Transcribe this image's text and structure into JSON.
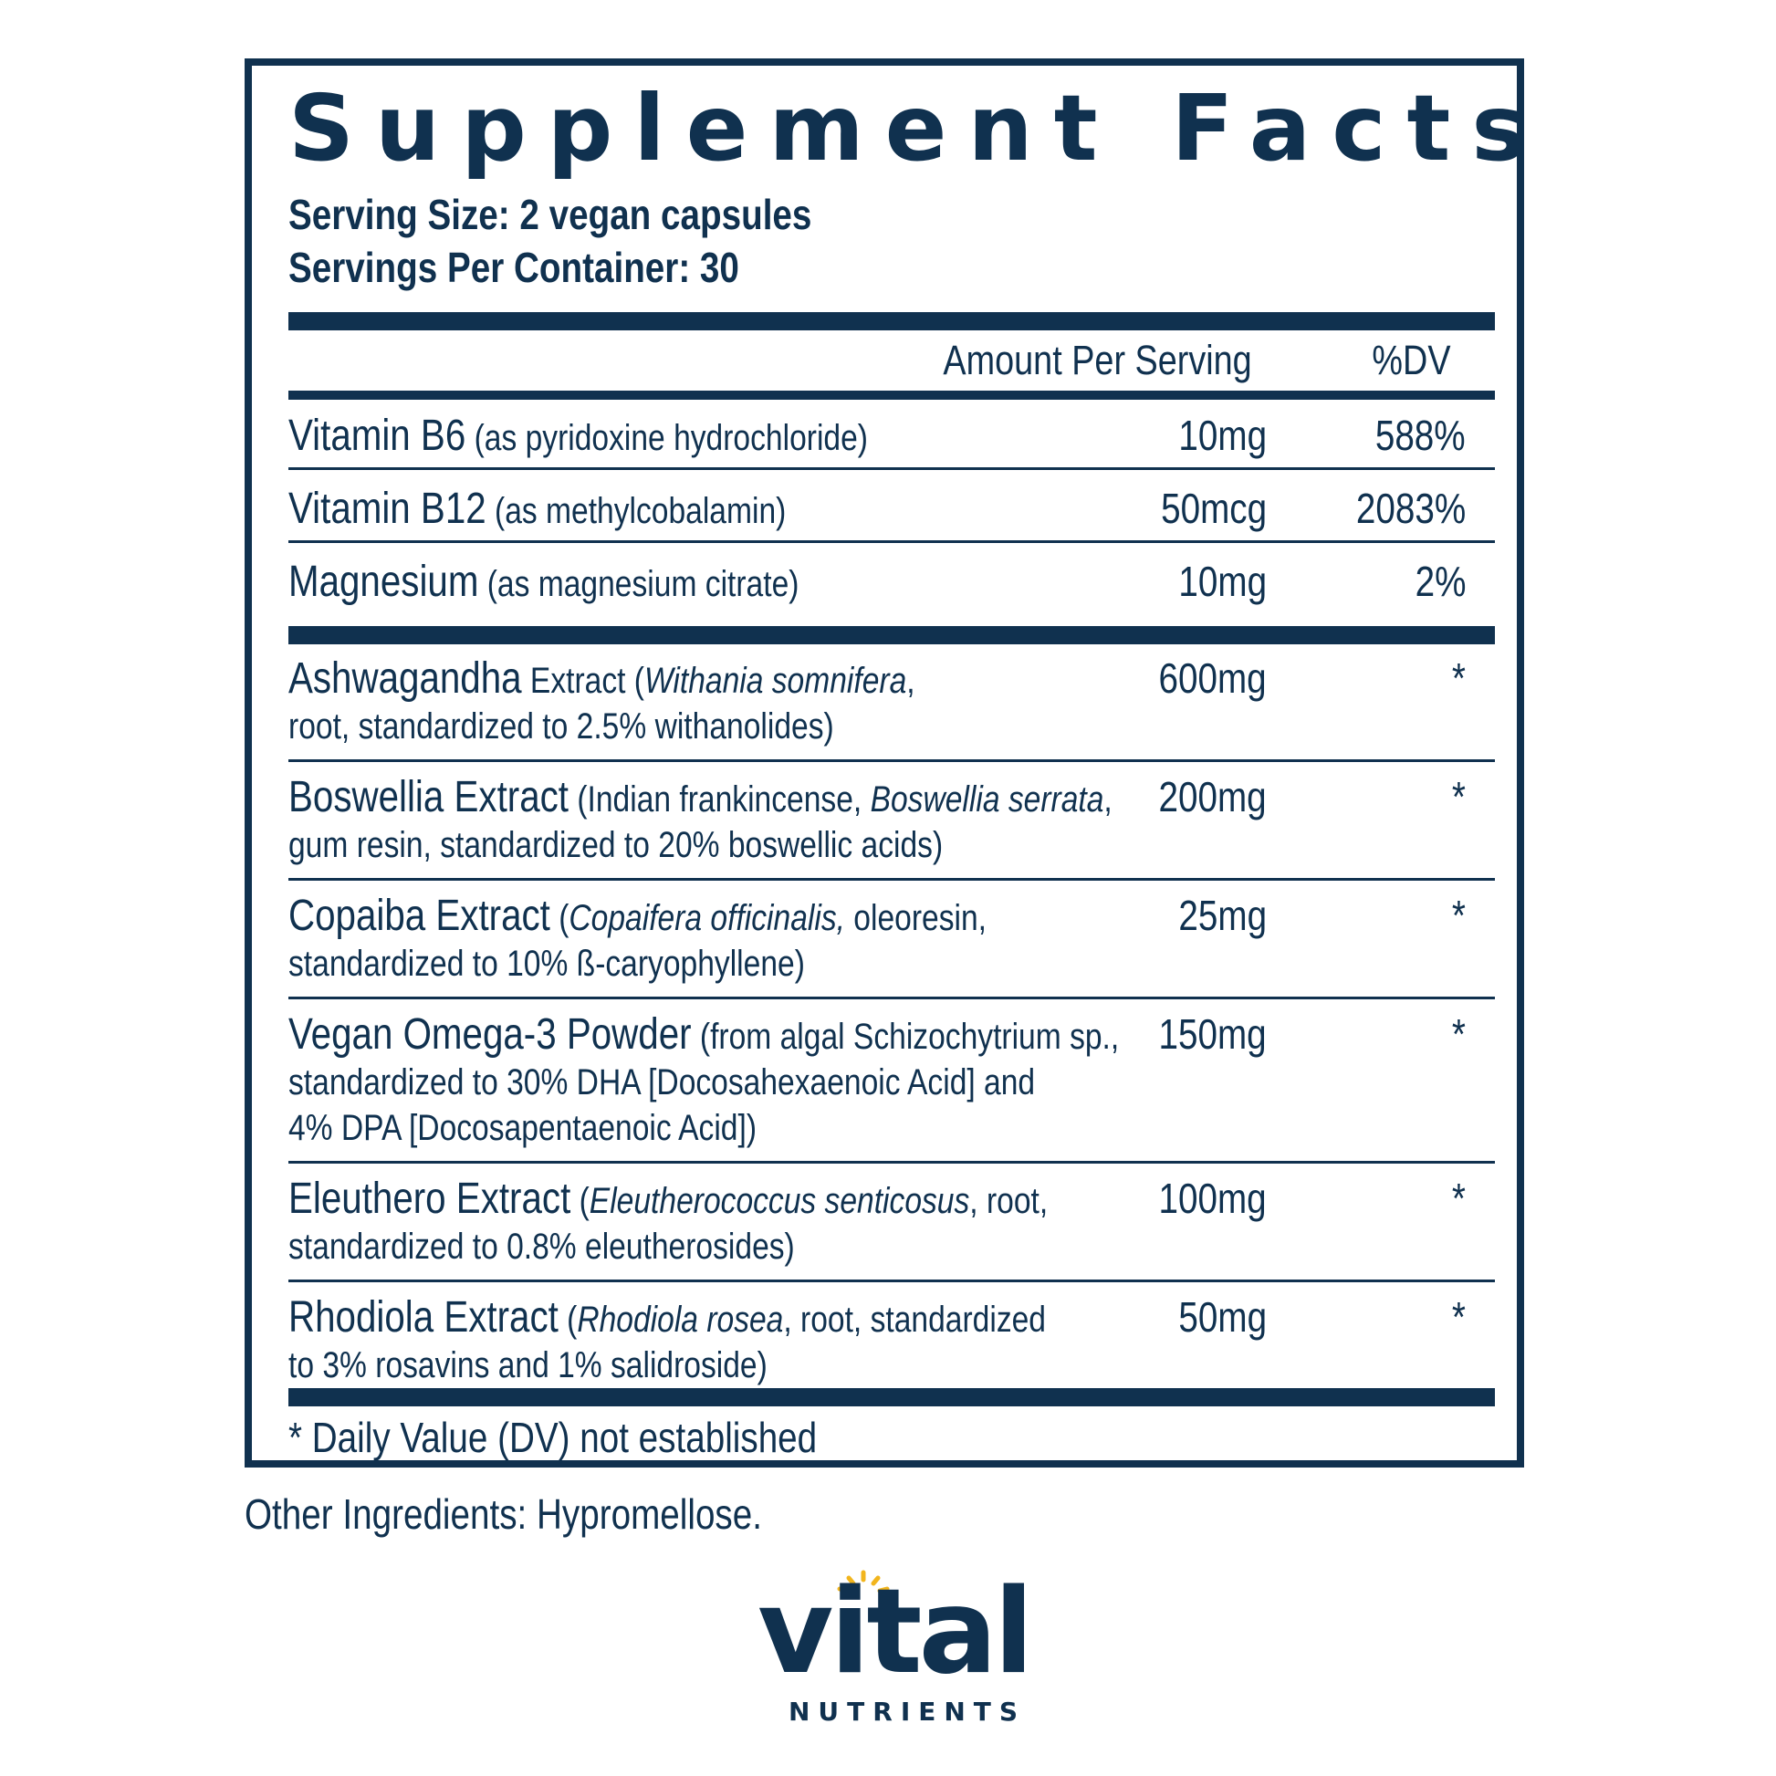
{
  "panel": {
    "title": "Supplement Facts",
    "serving_size": "Serving Size: 2 vegan capsules",
    "servings_per_container": "Servings Per Container: 30",
    "header": {
      "amount": "Amount Per Serving",
      "dv": "%DV"
    },
    "vitamins": [
      {
        "name": "Vitamin B6",
        "desc": " (as pyridoxine hydrochloride)",
        "amount": "10mg",
        "dv": "588%"
      },
      {
        "name": "Vitamin B12",
        "desc": " (as methylcobalamin)",
        "amount": "50mcg",
        "dv": "2083%"
      },
      {
        "name": "Magnesium",
        "desc": " (as magnesium citrate)",
        "amount": "10mg",
        "dv": "2%"
      }
    ],
    "botanicals": [
      {
        "name": "Ashwagandha",
        "l1a": " Extract (",
        "l1i": "Withania somnifera",
        "l1b": ",",
        "l2": "root, standardized to 2.5% withanolides)",
        "l3": "",
        "amount": "600mg",
        "dv": "*"
      },
      {
        "name": "Boswellia Extract",
        "l1a": " (Indian frankincense, ",
        "l1i": "Boswellia serrata",
        "l1b": ",",
        "l2": "gum resin, standardized to 20% boswellic acids)",
        "l3": "",
        "amount": "200mg",
        "dv": "*"
      },
      {
        "name": "Copaiba Extract",
        "l1a": " (",
        "l1i": "Copaifera officinalis,",
        "l1b": " oleoresin,",
        "l2": "standardized to 10% ß-caryophyllene)",
        "l3": "",
        "amount": "25mg",
        "dv": "*"
      },
      {
        "name": "Vegan Omega-3 Powder",
        "l1a": " (from algal Schizochytrium sp.,",
        "l1i": "",
        "l1b": "",
        "l2": "standardized to 30% DHA [Docosahexaenoic Acid] and",
        "l3": "4% DPA [Docosapentaenoic Acid])",
        "amount": "150mg",
        "dv": "*"
      },
      {
        "name": "Eleuthero Extract",
        "l1a": " (",
        "l1i": "Eleutherococcus senticosus",
        "l1b": ", root,",
        "l2": "standardized to 0.8% eleutherosides)",
        "l3": "",
        "amount": "100mg",
        "dv": "*"
      },
      {
        "name": "Rhodiola Extract",
        "l1a": " (",
        "l1i": "Rhodiola rosea",
        "l1b": ", root, standardized",
        "l2": "to 3% rosavins and 1% salidroside)",
        "l3": "",
        "amount": "50mg",
        "dv": "*"
      }
    ],
    "footnote": "* Daily Value (DV) not established"
  },
  "other_ingredients": "Other Ingredients:  Hypromellose.",
  "brand": {
    "word": "vital",
    "sub": "NUTRIENTS",
    "accent": "#f2b51d",
    "color": "#10314f"
  }
}
